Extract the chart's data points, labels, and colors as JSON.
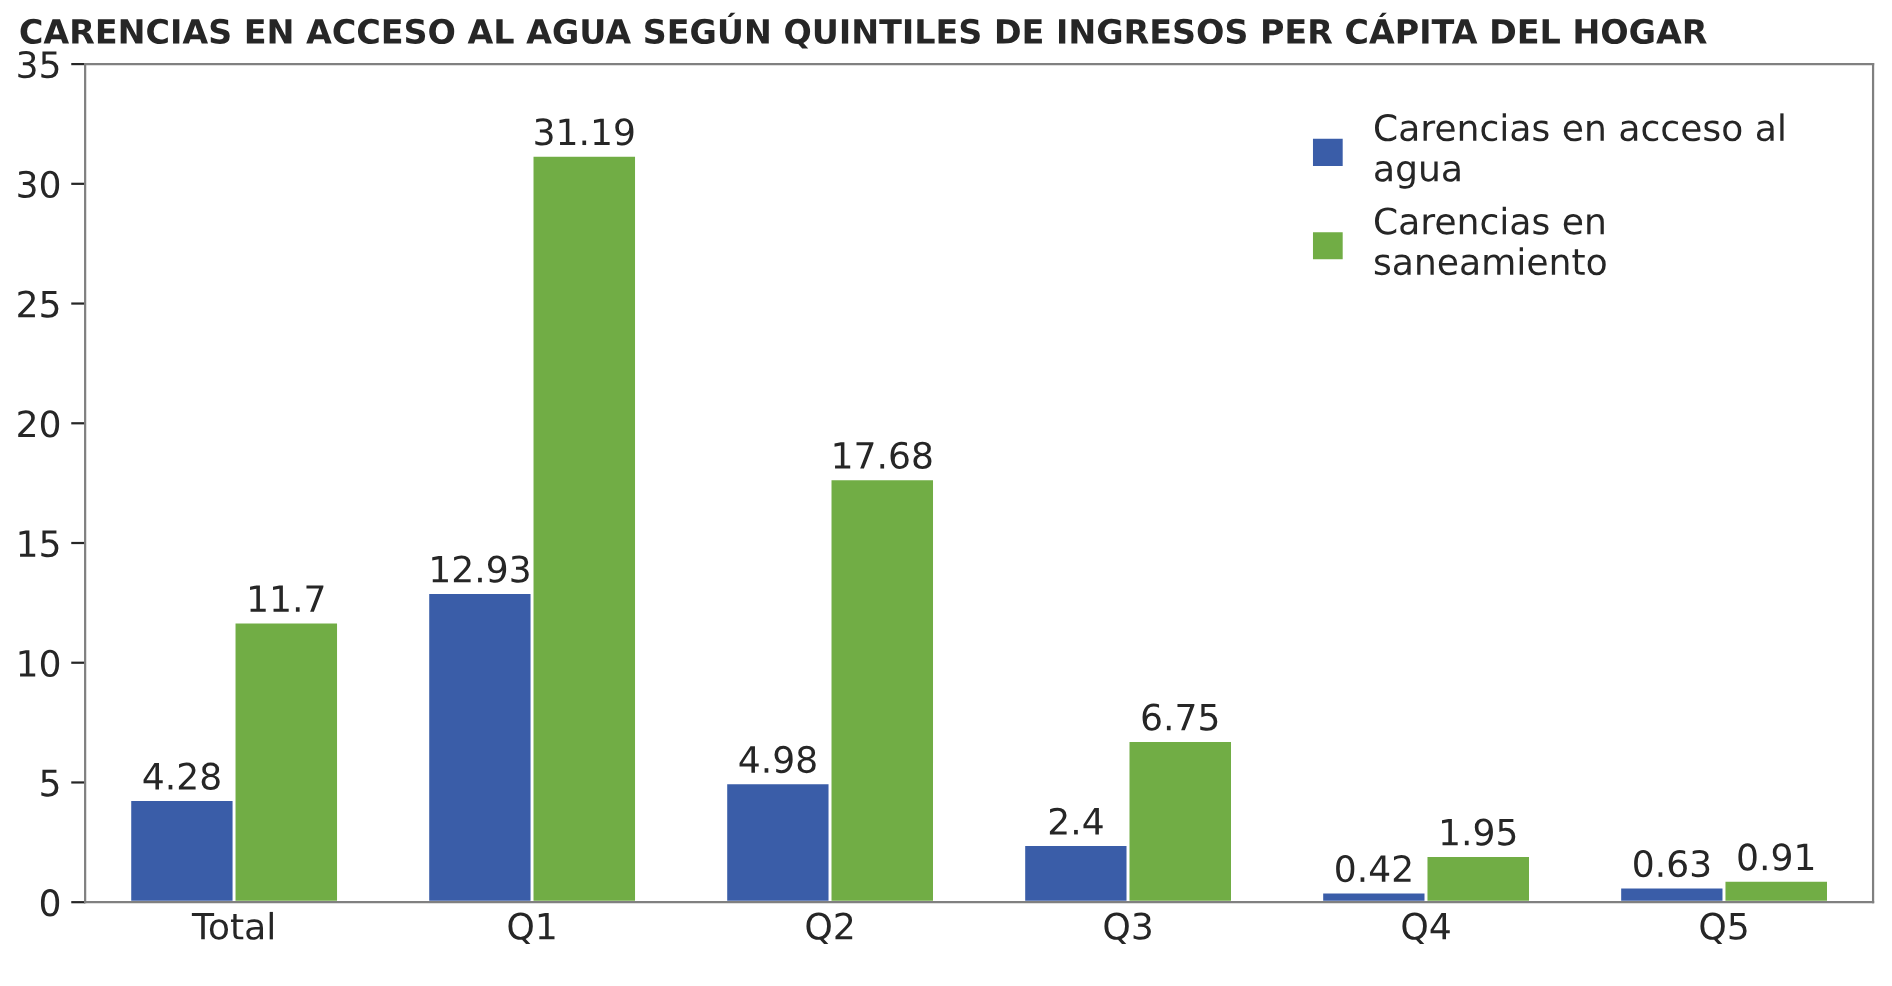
{
  "chart_data": {
    "type": "bar",
    "title": "CARENCIAS EN ACCESO AL AGUA SEGÚN QUINTILES DE INGRESOS PER CÁPITA DEL HOGAR",
    "categories": [
      "Total",
      "Q1",
      "Q2",
      "Q3",
      "Q4",
      "Q5"
    ],
    "series": [
      {
        "name": "Carencias en acceso al\nagua",
        "color": "#3a5da8",
        "values": [
          4.28,
          12.93,
          4.98,
          2.4,
          0.42,
          0.63
        ]
      },
      {
        "name": "Carencias en\nsaneamiento",
        "color": "#71ad45",
        "values": [
          11.7,
          31.19,
          17.68,
          6.75,
          1.95,
          0.91
        ]
      }
    ],
    "ylim": [
      0,
      35
    ],
    "yticks": [
      0,
      5,
      10,
      15,
      20,
      25,
      30,
      35
    ],
    "grid": false,
    "legend": "top right",
    "data_labels": true
  }
}
